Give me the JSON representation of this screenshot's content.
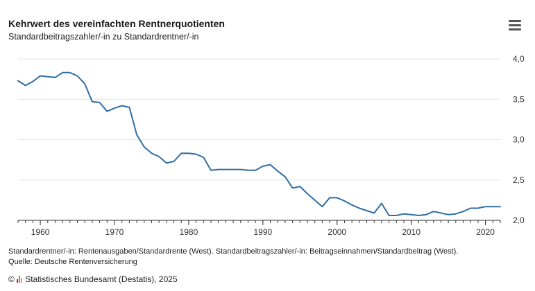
{
  "header": {
    "title": "Kehrwert des vereinfachten Rentnerquotienten",
    "subtitle": "Standardbeitragszahler/-in zu Standardrentner/-in"
  },
  "icons": {
    "menu": "hamburger-menu-icon",
    "logo": "destatis-logo-icon"
  },
  "colors": {
    "line": "#2e6da4",
    "grid": "#e6e6e6",
    "axis": "#333333"
  },
  "chart_data": {
    "type": "line",
    "title": "Kehrwert des vereinfachten Rentnerquotienten",
    "xlabel": "",
    "ylabel": "",
    "xlim": [
      1957,
      2022
    ],
    "ylim": [
      2.0,
      4.0
    ],
    "x_ticks": [
      1960,
      1970,
      1980,
      1990,
      2000,
      2010,
      2020
    ],
    "y_ticks": [
      2.0,
      2.5,
      3.0,
      3.5,
      4.0
    ],
    "y_tick_labels": [
      "2,0",
      "2,5",
      "3,0",
      "3,5",
      "4,0"
    ],
    "grid": true,
    "series": [
      {
        "name": "Kehrwert des vereinfachten Rentnerquotienten",
        "x": [
          1957,
          1958,
          1959,
          1960,
          1961,
          1962,
          1963,
          1964,
          1965,
          1966,
          1967,
          1968,
          1969,
          1970,
          1971,
          1972,
          1973,
          1974,
          1975,
          1976,
          1977,
          1978,
          1979,
          1980,
          1981,
          1982,
          1983,
          1984,
          1985,
          1986,
          1987,
          1988,
          1989,
          1990,
          1991,
          1992,
          1993,
          1994,
          1995,
          1996,
          1997,
          1998,
          1999,
          2000,
          2001,
          2002,
          2003,
          2004,
          2005,
          2006,
          2007,
          2008,
          2009,
          2010,
          2011,
          2012,
          2013,
          2014,
          2015,
          2016,
          2017,
          2018,
          2019,
          2020,
          2021,
          2022
        ],
        "values": [
          3.73,
          3.67,
          3.72,
          3.79,
          3.78,
          3.77,
          3.83,
          3.83,
          3.79,
          3.69,
          3.47,
          3.46,
          3.35,
          3.39,
          3.42,
          3.4,
          3.06,
          2.91,
          2.83,
          2.79,
          2.71,
          2.73,
          2.83,
          2.83,
          2.82,
          2.78,
          2.62,
          2.63,
          2.63,
          2.63,
          2.63,
          2.62,
          2.62,
          2.67,
          2.69,
          2.61,
          2.54,
          2.4,
          2.42,
          2.33,
          2.25,
          2.17,
          2.28,
          2.28,
          2.24,
          2.19,
          2.15,
          2.12,
          2.09,
          2.21,
          2.06,
          2.06,
          2.08,
          2.07,
          2.06,
          2.07,
          2.11,
          2.09,
          2.07,
          2.08,
          2.11,
          2.15,
          2.15,
          2.17,
          2.17,
          2.17
        ]
      }
    ]
  },
  "notes": {
    "line1": "Standardrentner/-in: Rentenausgaben/Standardrente (West). Standardbeitragszahler/-in: Beitragseinnahmen/Standardbeitrag (West).",
    "line2": "Quelle: Deutsche Rentenversicherung"
  },
  "footer": {
    "text": "Statistisches Bundesamt (Destatis), 2025"
  }
}
